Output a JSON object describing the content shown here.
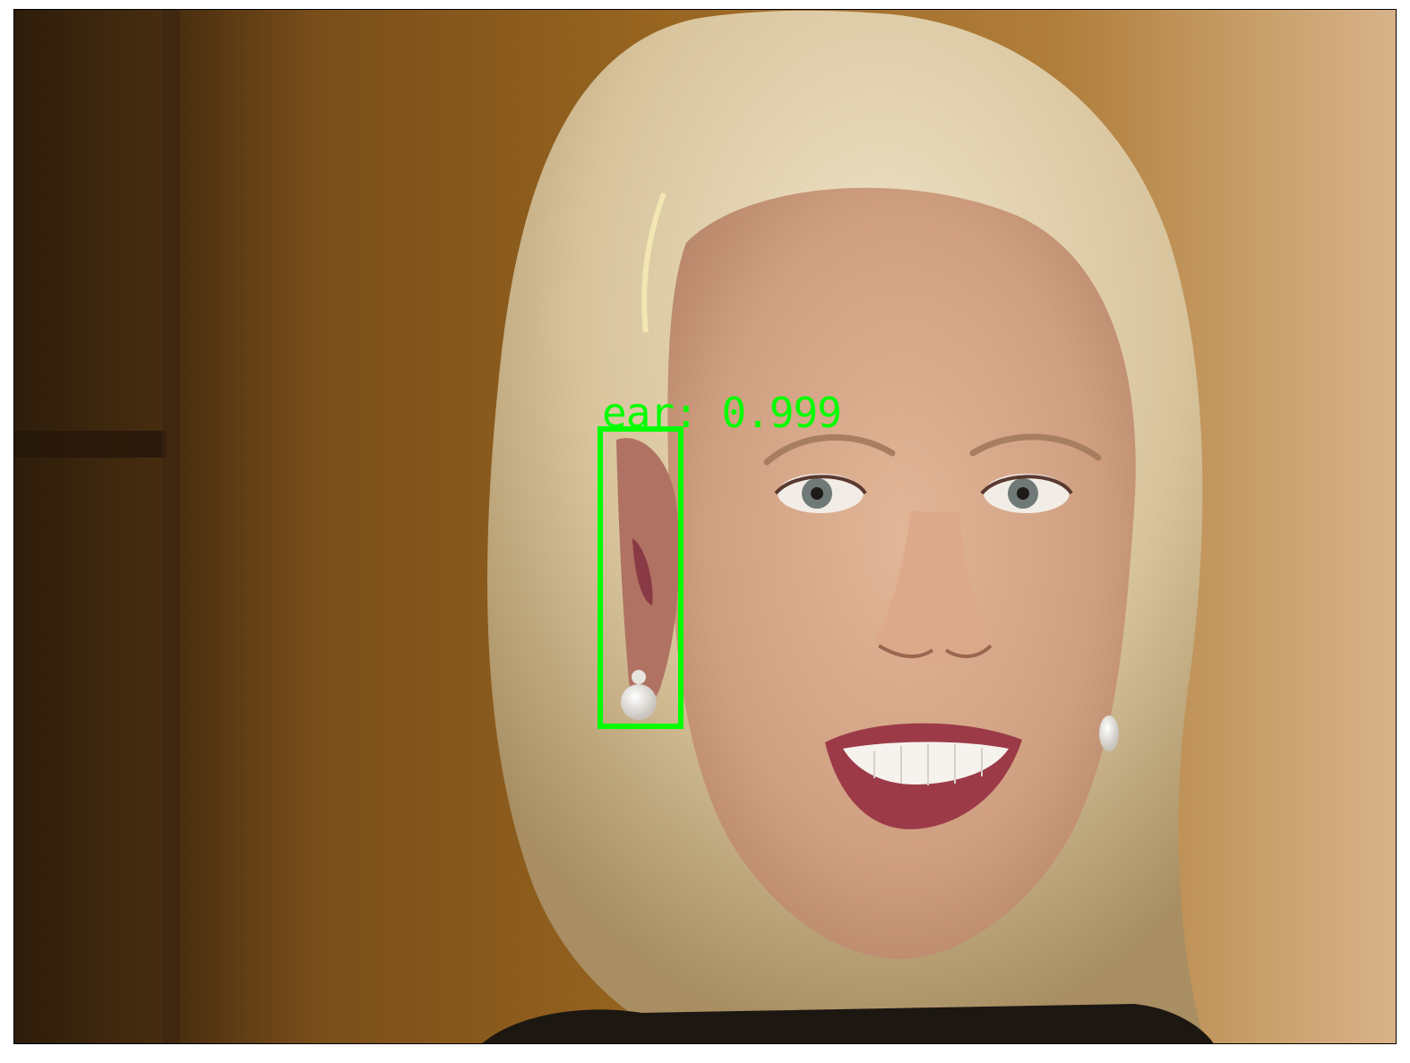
{
  "image": {
    "description_icon": "photo-portrait"
  },
  "detection": {
    "label_text": "ear: 0.999",
    "box_color": "#00ff00",
    "label_color": "#00ff00"
  }
}
